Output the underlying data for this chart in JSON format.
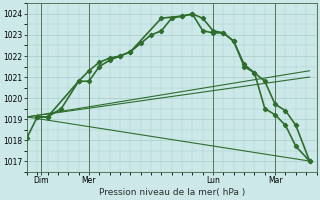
{
  "title": "Pression niveau de la mer( hPa )",
  "bg_color": "#cce8e8",
  "plot_bg_color": "#cce8e8",
  "grid_color": "#aacccc",
  "line_color": "#2d6e2d",
  "ylim": [
    1016.5,
    1024.5
  ],
  "yticks": [
    1017,
    1018,
    1019,
    1020,
    1021,
    1022,
    1023,
    1024
  ],
  "xlim": [
    0,
    84
  ],
  "xtick_labels": [
    "Dim",
    "Mer",
    "Lun",
    "Mar"
  ],
  "xtick_positions": [
    4,
    18,
    54,
    72
  ],
  "vlines": [
    4,
    18,
    54,
    72
  ],
  "series_main1": {
    "x": [
      0,
      3,
      6,
      10,
      15,
      18,
      21,
      24,
      27,
      30,
      33,
      36,
      39,
      42,
      45,
      48,
      51,
      54,
      57,
      60,
      63,
      66,
      69,
      72,
      75,
      78,
      82
    ],
    "y": [
      1018.1,
      1019.1,
      1019.1,
      1019.5,
      1020.8,
      1021.3,
      1021.7,
      1021.9,
      1022.0,
      1022.2,
      1022.6,
      1023.0,
      1023.2,
      1023.8,
      1023.9,
      1024.0,
      1023.8,
      1023.2,
      1023.1,
      1022.7,
      1021.6,
      1021.2,
      1020.8,
      1019.7,
      1019.4,
      1018.7,
      1017.0
    ]
  },
  "series_main2": {
    "x": [
      3,
      6,
      15,
      18,
      21,
      24,
      27,
      30,
      39,
      45,
      48,
      51,
      54,
      57,
      60,
      63,
      66,
      69,
      72,
      75,
      78,
      82
    ],
    "y": [
      1019.1,
      1019.1,
      1020.8,
      1020.8,
      1021.5,
      1021.8,
      1022.0,
      1022.2,
      1023.8,
      1023.9,
      1024.0,
      1023.2,
      1023.1,
      1023.1,
      1022.7,
      1021.5,
      1021.2,
      1019.5,
      1019.2,
      1018.7,
      1017.7,
      1017.0
    ]
  },
  "trend1": {
    "x": [
      0,
      82
    ],
    "y": [
      1019.1,
      1021.3
    ]
  },
  "trend2": {
    "x": [
      0,
      82
    ],
    "y": [
      1019.1,
      1021.0
    ]
  },
  "trend3": {
    "x": [
      0,
      82
    ],
    "y": [
      1019.1,
      1017.0
    ]
  }
}
